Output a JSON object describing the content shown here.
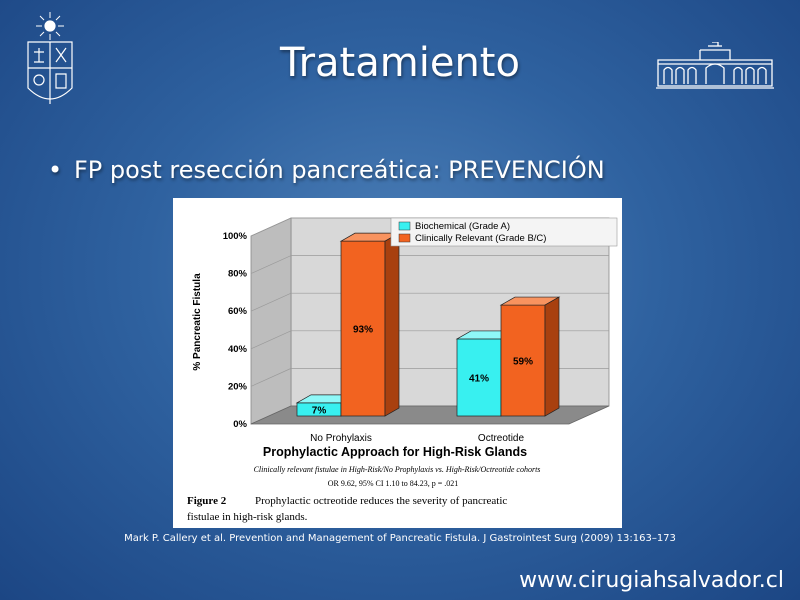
{
  "slide": {
    "title": "Tratamiento",
    "bullet": "FP post resección pancreática: PREVENCIÓN",
    "citation": "Mark P. Callery  et al. Prevention and Management of Pancreatic Fistula. J Gastrointest Surg (2009) 13:163–173",
    "site_url": "www.cirugiahsalvador.cl"
  },
  "colors": {
    "background": "#2f62a0",
    "biochemical": "#38f0f0",
    "clinically_relevant": "#f26320",
    "floor": "#8a8a8a",
    "wall": "#d8d8d8"
  },
  "chart_data": {
    "type": "bar",
    "title": "Prophylactic Approach for High-Risk Glands",
    "subtitle": "Clinically relevant fistulae in High-Risk/No Prophylaxis vs. High-Risk/Octreotide cohorts",
    "stats": "OR 9.62, 95% CI 1.10 to 84.23, p = .021",
    "ylabel": "% Pancreatic Fistula",
    "xlabel": "",
    "ylim": [
      0,
      100
    ],
    "yticks": [
      "0%",
      "20%",
      "40%",
      "60%",
      "80%",
      "100%"
    ],
    "categories": [
      "No Prohylaxis",
      "Octreotide"
    ],
    "series": [
      {
        "name": "Biochemical (Grade A)",
        "values": [
          7,
          41
        ],
        "labels": [
          "7%",
          "41%"
        ]
      },
      {
        "name": "Clinically Relevant (Grade B/C)",
        "values": [
          93,
          59
        ],
        "labels": [
          "93%",
          "59%"
        ]
      }
    ],
    "legend": "top-right",
    "grid": true,
    "caption_label": "Figure 2",
    "caption_text_1": "Prophylactic octreotide reduces the severity of pancreatic",
    "caption_text_2": "fistulae in high-risk glands."
  }
}
